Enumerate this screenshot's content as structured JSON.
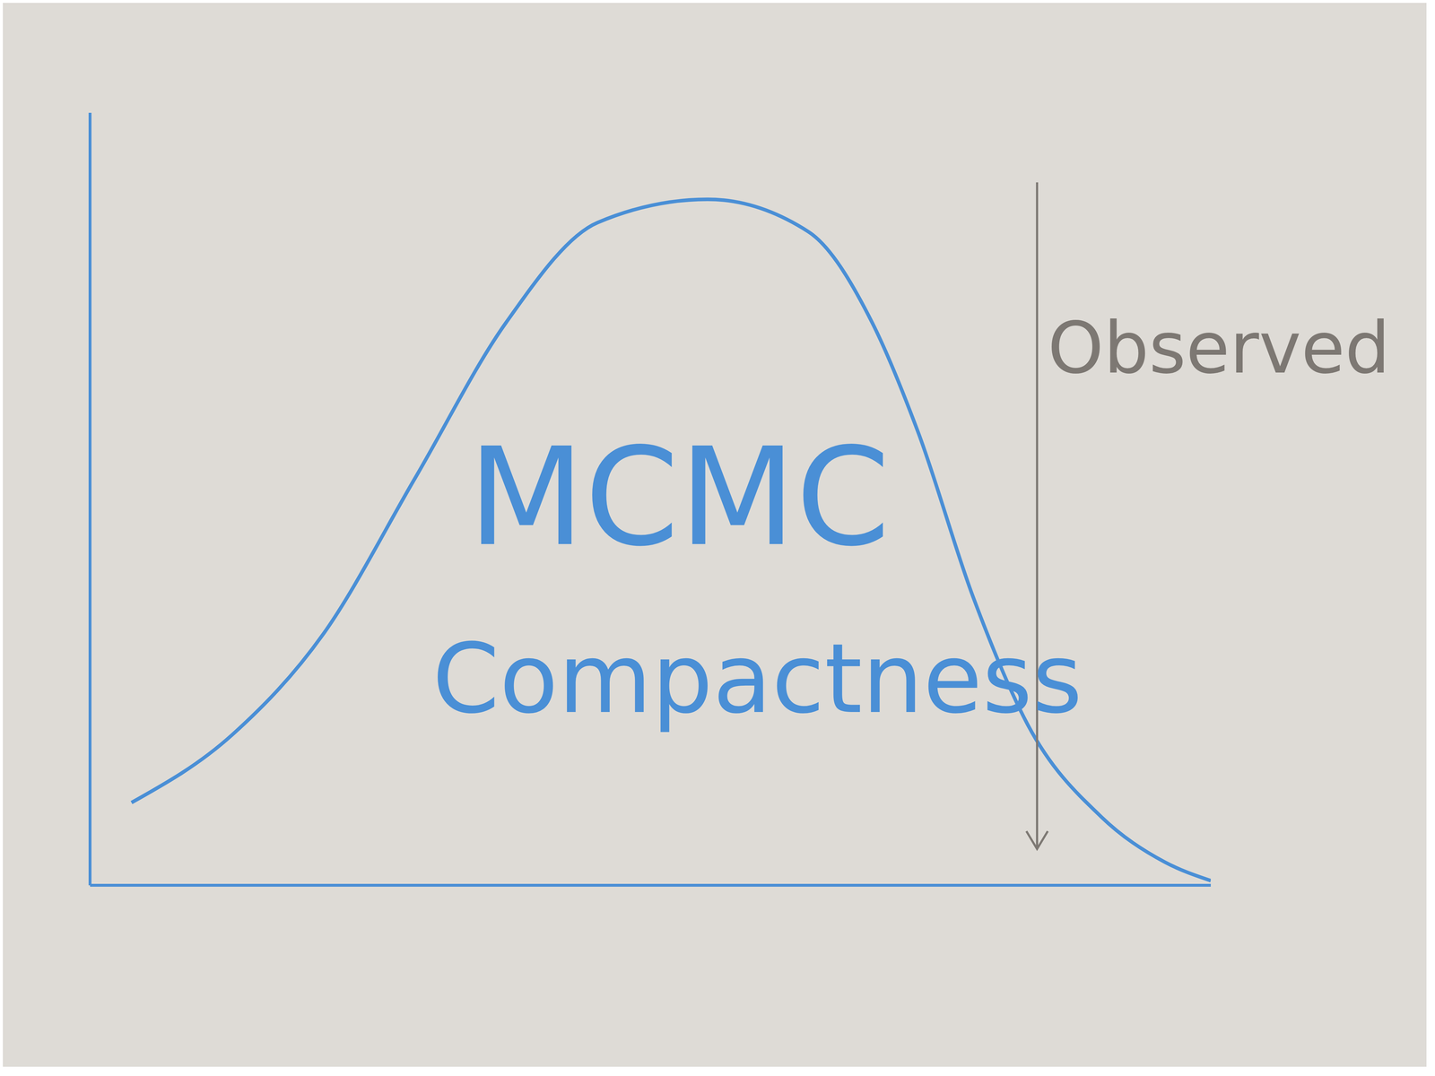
{
  "chart_data": {
    "type": "line",
    "x": [
      3.7,
      12.7,
      20.8,
      29,
      37.1,
      45.3,
      55.1,
      64.1,
      69.8,
      73.9,
      78.8,
      83.7,
      90.2,
      95.9,
      100
    ],
    "values": [
      10.7,
      19.5,
      32.5,
      52.7,
      72.8,
      85.8,
      88.8,
      84.6,
      72.8,
      58.6,
      37.3,
      20.7,
      8.9,
      3.0,
      0.6
    ],
    "color": "#4a8fd6",
    "xlim": [
      0,
      100
    ],
    "ylim": [
      0,
      100
    ],
    "tick_labels": false,
    "annotations": [
      {
        "text": "MCMC"
      },
      {
        "text": "Compactness"
      }
    ],
    "observed": {
      "label": "Observed",
      "x": 84.5,
      "y": [
        91,
        4.7
      ],
      "color": "#7d7873"
    }
  }
}
